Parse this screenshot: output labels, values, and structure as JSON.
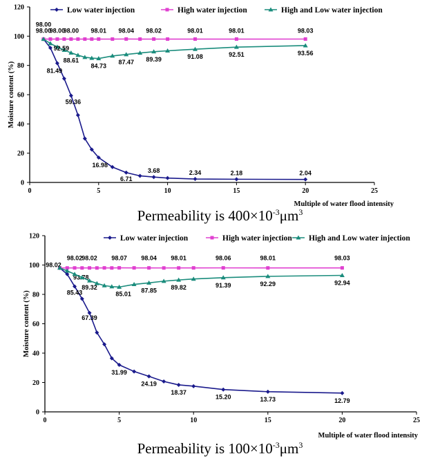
{
  "chart_data": [
    {
      "type": "line",
      "caption_prefix": "Permeability is 400×10",
      "caption_exp1": "-3",
      "caption_mid": "μm",
      "caption_exp2": "3",
      "xlabel": "Multiple of water flood intensity",
      "ylabel": "Moisture content (%)",
      "xlim": [
        0,
        25
      ],
      "ylim": [
        0,
        120
      ],
      "xticks": [
        0,
        5,
        10,
        15,
        20,
        25
      ],
      "yticks": [
        0,
        20,
        40,
        60,
        80,
        100,
        120
      ],
      "legend_position": "top",
      "series": [
        {
          "name": "Low water injection",
          "color": "#1a1a8c",
          "marker": "diamond",
          "points": [
            [
              1,
              98
            ],
            [
              1.5,
              92
            ],
            [
              2,
              81.49
            ],
            [
              2.5,
              71
            ],
            [
              3,
              59.36
            ],
            [
              3.5,
              46
            ],
            [
              4,
              30
            ],
            [
              4.5,
              22.5
            ],
            [
              5,
              16.98
            ],
            [
              6,
              10.5
            ],
            [
              7,
              6.71
            ],
            [
              8,
              4.5
            ],
            [
              9,
              3.68
            ],
            [
              10,
              3
            ],
            [
              12,
              2.34
            ],
            [
              15,
              2.18
            ],
            [
              20,
              2.04
            ]
          ],
          "labels": [
            {
              "x": 2,
              "y": 81.49,
              "text": "81.49",
              "dx": -4,
              "dy": 14
            },
            {
              "x": 3,
              "y": 59.36,
              "text": "59.36",
              "dx": 3,
              "dy": 12
            },
            {
              "x": 5,
              "y": 16.98,
              "text": "16.98",
              "dx": 2,
              "dy": 14
            },
            {
              "x": 7,
              "y": 6.71,
              "text": "6.71",
              "dx": 0,
              "dy": 12
            },
            {
              "x": 9,
              "y": 3.68,
              "text": "3.68",
              "dx": 0,
              "dy": -6
            },
            {
              "x": 12,
              "y": 2.34,
              "text": "2.34",
              "dx": 0,
              "dy": -6
            },
            {
              "x": 15,
              "y": 2.18,
              "text": "2.18",
              "dx": 0,
              "dy": -6
            },
            {
              "x": 20,
              "y": 2.04,
              "text": "2.04",
              "dx": 0,
              "dy": -6
            }
          ]
        },
        {
          "name": "High water injection",
          "color": "#e040d0",
          "marker": "square",
          "points": [
            [
              1,
              98
            ],
            [
              1.5,
              98
            ],
            [
              2,
              98
            ],
            [
              2.5,
              98
            ],
            [
              3,
              98
            ],
            [
              3.5,
              98
            ],
            [
              4,
              98
            ],
            [
              4.5,
              98
            ],
            [
              5,
              98.01
            ],
            [
              6,
              98
            ],
            [
              7,
              98.04
            ],
            [
              8,
              98
            ],
            [
              9,
              98.02
            ],
            [
              10,
              98
            ],
            [
              12,
              98.01
            ],
            [
              15,
              98.01
            ],
            [
              20,
              98.03
            ]
          ],
          "labels": [
            {
              "x": 1,
              "y": 98,
              "text": "98.00",
              "dx": 0,
              "dy": -18
            },
            {
              "x": 2,
              "y": 98,
              "text": "98.00",
              "dx": 0,
              "dy": -9
            },
            {
              "x": 3,
              "y": 98,
              "text": "98.00",
              "dx": 0,
              "dy": -9
            },
            {
              "x": 5,
              "y": 98.01,
              "text": "98.01",
              "dx": 0,
              "dy": -9
            },
            {
              "x": 7,
              "y": 98.04,
              "text": "98.04",
              "dx": 0,
              "dy": -9
            },
            {
              "x": 9,
              "y": 98.02,
              "text": "98.02",
              "dx": 0,
              "dy": -9
            },
            {
              "x": 12,
              "y": 98.01,
              "text": "98.01",
              "dx": 0,
              "dy": -9
            },
            {
              "x": 15,
              "y": 98.01,
              "text": "98.01",
              "dx": 0,
              "dy": -9
            },
            {
              "x": 20,
              "y": 98.03,
              "text": "98.03",
              "dx": 0,
              "dy": -9
            }
          ]
        },
        {
          "name": "High  and Low water injection",
          "color": "#1a8c7c",
          "marker": "triangle",
          "points": [
            [
              1,
              98
            ],
            [
              1.5,
              95
            ],
            [
              2,
              92.59
            ],
            [
              2.5,
              90.5
            ],
            [
              3,
              88.61
            ],
            [
              3.5,
              87
            ],
            [
              4,
              85.6
            ],
            [
              4.5,
              85
            ],
            [
              5,
              84.73
            ],
            [
              6,
              86.5
            ],
            [
              7,
              87.47
            ],
            [
              8,
              88.5
            ],
            [
              9,
              89.39
            ],
            [
              10,
              90
            ],
            [
              12,
              91.08
            ],
            [
              15,
              92.51
            ],
            [
              20,
              93.56
            ]
          ],
          "labels": [
            {
              "x": 1,
              "y": 98,
              "text": "98.00",
              "dx": 0,
              "dy": -9
            },
            {
              "x": 2,
              "y": 92.59,
              "text": "92.59",
              "dx": 6,
              "dy": 5
            },
            {
              "x": 3,
              "y": 88.61,
              "text": "88.61",
              "dx": 0,
              "dy": 14
            },
            {
              "x": 5,
              "y": 84.73,
              "text": "84.73",
              "dx": 0,
              "dy": 14
            },
            {
              "x": 7,
              "y": 87.47,
              "text": "87.47",
              "dx": 0,
              "dy": 14
            },
            {
              "x": 9,
              "y": 89.39,
              "text": "89.39",
              "dx": 0,
              "dy": 14
            },
            {
              "x": 12,
              "y": 91.08,
              "text": "91.08",
              "dx": 0,
              "dy": 14
            },
            {
              "x": 15,
              "y": 92.51,
              "text": "92.51",
              "dx": 0,
              "dy": 14
            },
            {
              "x": 20,
              "y": 93.56,
              "text": "93.56",
              "dx": 0,
              "dy": 14
            }
          ]
        }
      ]
    },
    {
      "type": "line",
      "caption_prefix": "Permeability is 100×10",
      "caption_exp1": "-3",
      "caption_mid": "μm",
      "caption_exp2": "3",
      "xlabel": "Multiple of water flood intensity",
      "ylabel": "Moisture content (%)",
      "xlim": [
        0,
        25
      ],
      "ylim": [
        0,
        120
      ],
      "xticks": [
        0,
        5,
        10,
        15,
        20,
        25
      ],
      "yticks": [
        0,
        20,
        40,
        60,
        80,
        100,
        120
      ],
      "legend_position": "top",
      "series": [
        {
          "name": "Low water injection",
          "color": "#1a1a8c",
          "marker": "diamond",
          "points": [
            [
              1,
              98.02
            ],
            [
              1.5,
              93.78
            ],
            [
              2,
              85.43
            ],
            [
              2.5,
              77
            ],
            [
              3,
              67.39
            ],
            [
              3.5,
              54
            ],
            [
              4,
              46
            ],
            [
              4.5,
              36.5
            ],
            [
              5,
              31.99
            ],
            [
              6,
              27.5
            ],
            [
              7,
              24.19
            ],
            [
              8,
              20.7
            ],
            [
              9,
              18.37
            ],
            [
              10,
              17.5
            ],
            [
              12,
              15.2
            ],
            [
              15,
              13.73
            ],
            [
              20,
              12.79
            ]
          ],
          "labels": [
            {
              "x": 1.5,
              "y": 93.78,
              "text": "93.78",
              "dx": 20,
              "dy": 8
            },
            {
              "x": 2,
              "y": 85.43,
              "text": "85.43",
              "dx": 0,
              "dy": 12
            },
            {
              "x": 3,
              "y": 67.39,
              "text": "67.39",
              "dx": 0,
              "dy": 10
            },
            {
              "x": 5,
              "y": 31.99,
              "text": "31.99",
              "dx": 0,
              "dy": 14
            },
            {
              "x": 7,
              "y": 24.19,
              "text": "24.19",
              "dx": 0,
              "dy": 14
            },
            {
              "x": 9,
              "y": 18.37,
              "text": "18.37",
              "dx": 0,
              "dy": 14
            },
            {
              "x": 12,
              "y": 15.2,
              "text": "15.20",
              "dx": 0,
              "dy": 14
            },
            {
              "x": 15,
              "y": 13.73,
              "text": "13.73",
              "dx": 0,
              "dy": 14
            },
            {
              "x": 20,
              "y": 12.79,
              "text": "12.79",
              "dx": 0,
              "dy": 14
            }
          ]
        },
        {
          "name": "High water injection",
          "color": "#e040d0",
          "marker": "square",
          "points": [
            [
              1,
              98.02
            ],
            [
              1.5,
              98
            ],
            [
              2,
              98.02
            ],
            [
              2.5,
              98
            ],
            [
              3,
              98.02
            ],
            [
              3.5,
              98
            ],
            [
              4,
              98.05
            ],
            [
              4.5,
              98
            ],
            [
              5,
              98.07
            ],
            [
              6,
              98.05
            ],
            [
              7,
              98.04
            ],
            [
              8,
              98
            ],
            [
              9,
              98.01
            ],
            [
              10,
              98.05
            ],
            [
              12,
              98.06
            ],
            [
              15,
              98.01
            ],
            [
              20,
              98.03
            ]
          ],
          "labels": [
            {
              "x": 1,
              "y": 98.02,
              "text": "98.02",
              "dx": -9,
              "dy": -1
            },
            {
              "x": 2,
              "y": 98.02,
              "text": "98.02",
              "dx": 0,
              "dy": -11
            },
            {
              "x": 3,
              "y": 98.02,
              "text": "98.02",
              "dx": 0,
              "dy": -11
            },
            {
              "x": 5,
              "y": 98.07,
              "text": "98.07",
              "dx": 0,
              "dy": -11
            },
            {
              "x": 7,
              "y": 98.04,
              "text": "98.04",
              "dx": 0,
              "dy": -11
            },
            {
              "x": 9,
              "y": 98.01,
              "text": "98.01",
              "dx": 0,
              "dy": -11
            },
            {
              "x": 12,
              "y": 98.06,
              "text": "98.06",
              "dx": 0,
              "dy": -11
            },
            {
              "x": 15,
              "y": 98.01,
              "text": "98.01",
              "dx": 0,
              "dy": -11
            },
            {
              "x": 20,
              "y": 98.03,
              "text": "98.03",
              "dx": 0,
              "dy": -11
            }
          ]
        },
        {
          "name": "High  and Low water injection",
          "color": "#1a8c7c",
          "marker": "triangle",
          "points": [
            [
              1,
              98.02
            ],
            [
              1.5,
              96
            ],
            [
              2,
              93.78
            ],
            [
              2.5,
              91.5
            ],
            [
              3,
              89.32
            ],
            [
              3.5,
              87.5
            ],
            [
              4,
              86
            ],
            [
              4.5,
              85.3
            ],
            [
              5,
              85.01
            ],
            [
              6,
              86.8
            ],
            [
              7,
              87.85
            ],
            [
              8,
              89
            ],
            [
              9,
              89.82
            ],
            [
              10,
              90.5
            ],
            [
              12,
              91.39
            ],
            [
              15,
              92.29
            ],
            [
              20,
              92.94
            ]
          ],
          "labels": [
            {
              "x": 3,
              "y": 89.32,
              "text": "89.32",
              "dx": 0,
              "dy": 13
            },
            {
              "x": 5,
              "y": 85.01,
              "text": "85.01",
              "dx": 6,
              "dy": 13
            },
            {
              "x": 7,
              "y": 87.85,
              "text": "87.85",
              "dx": 0,
              "dy": 14
            },
            {
              "x": 9,
              "y": 89.82,
              "text": "89.82",
              "dx": 0,
              "dy": 14
            },
            {
              "x": 12,
              "y": 91.39,
              "text": "91.39",
              "dx": 0,
              "dy": 14
            },
            {
              "x": 15,
              "y": 92.29,
              "text": "92.29",
              "dx": 0,
              "dy": 14
            },
            {
              "x": 20,
              "y": 92.94,
              "text": "92.94",
              "dx": 0,
              "dy": 14
            }
          ]
        }
      ]
    }
  ]
}
